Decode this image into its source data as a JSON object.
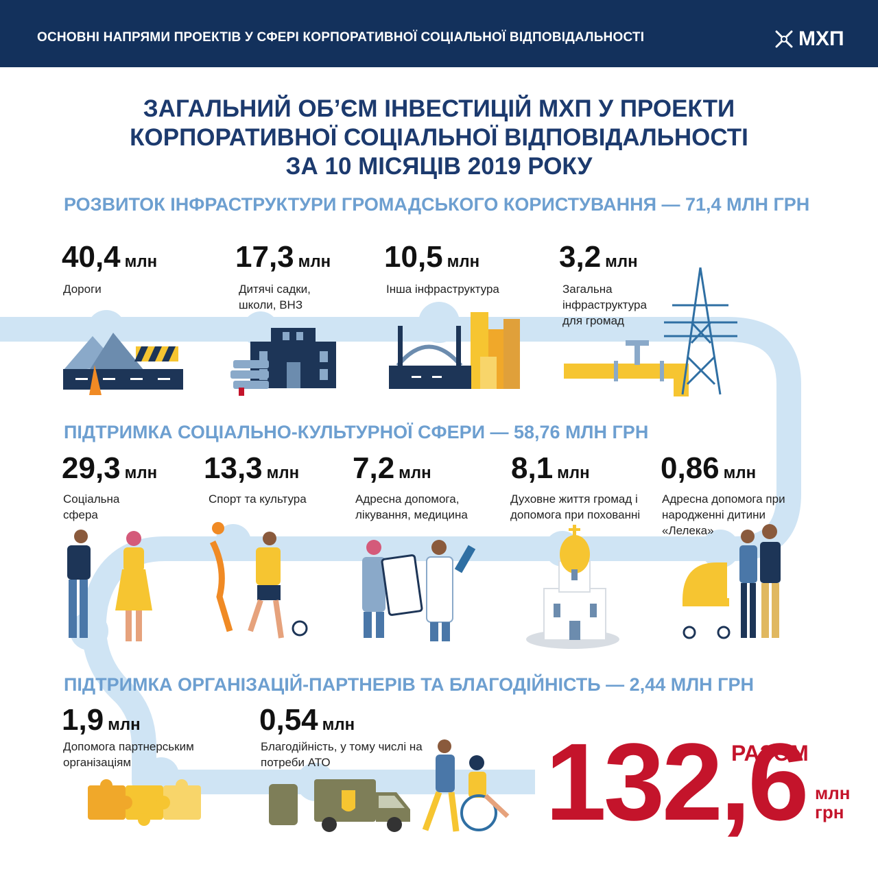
{
  "header": {
    "title": "ОСНОВНІ НАПРЯМИ ПРОЕКТІВ У СФЕРІ КОРПОРАТИВНОЇ СОЦІАЛЬНОЇ ВІДПОВІДАЛЬНОСТІ",
    "logo_text": "МХП"
  },
  "main_title": {
    "line1": "ЗАГАЛЬНИЙ ОБ’ЄМ ІНВЕСТИЦІЙ МХП У ПРОЕКТИ",
    "line2": "КОРПОРАТИВНОЇ СОЦІАЛЬНОЇ ВІДПОВІДАЛЬНОСТІ",
    "line3": "ЗА 10 МІСЯЦІВ 2019 РОКУ"
  },
  "sections": [
    {
      "title": "РОЗВИТОК ІНФРАСТРУКТУРИ ГРОМАДСЬКОГО КОРИСТУВАННЯ — 71,4 МЛН ГРН",
      "items": [
        {
          "value": "40,4",
          "unit": "млн",
          "label": "Дороги"
        },
        {
          "value": "17,3",
          "unit": "млн",
          "label": "Дитячі садки, школи, ВНЗ"
        },
        {
          "value": "10,5",
          "unit": "млн",
          "label": "Інша інфраструктура"
        },
        {
          "value": "3,2",
          "unit": "млн",
          "label": "Загальна інфраструктура для громад"
        }
      ]
    },
    {
      "title": "ПІДТРИМКА СОЦІАЛЬНО-КУЛЬТУРНОЇ СФЕРИ — 58,76 МЛН ГРН",
      "items": [
        {
          "value": "29,3",
          "unit": "млн",
          "label": "Соціальна сфера"
        },
        {
          "value": "13,3",
          "unit": "млн",
          "label": "Спорт та культура"
        },
        {
          "value": "7,2",
          "unit": "млн",
          "label": "Адресна допомога, лікування, медицина"
        },
        {
          "value": "8,1",
          "unit": "млн",
          "label": "Духовне життя громад і допомога при похованні"
        },
        {
          "value": "0,86",
          "unit": "млн",
          "label": "Адресна допомога при народженні дитини «Лелека»"
        }
      ]
    },
    {
      "title": "ПІДТРИМКА ОРГАНІЗАЦІЙ-ПАРТНЕРІВ ТА БЛАГОДІЙНІСТЬ — 2,44 МЛН ГРН",
      "items": [
        {
          "value": "1,9",
          "unit": "млн",
          "label": "Допомога партнерським організаціям"
        },
        {
          "value": "0,54",
          "unit": "млн",
          "label": "Благодійність, у тому числі на потреби АТО"
        }
      ]
    }
  ],
  "total": {
    "word": "РАЗОМ",
    "value": "132,6",
    "unit": "млн грн"
  },
  "colors": {
    "header_bg": "#13315c",
    "title": "#1c3a6e",
    "section_title": "#6d9fd0",
    "path": "#cfe4f4",
    "accent_yellow": "#f6c531",
    "total_red": "#c4142b"
  },
  "icons": [
    "windmill-logo-icon",
    "road-icon",
    "school-icon",
    "bridge-city-icon",
    "power-line-pipe-icon",
    "people-icon",
    "sport-icon",
    "medical-icon",
    "church-icon",
    "family-stroller-icon",
    "puzzle-icon",
    "military-van-icon",
    "wheelchair-icon"
  ]
}
